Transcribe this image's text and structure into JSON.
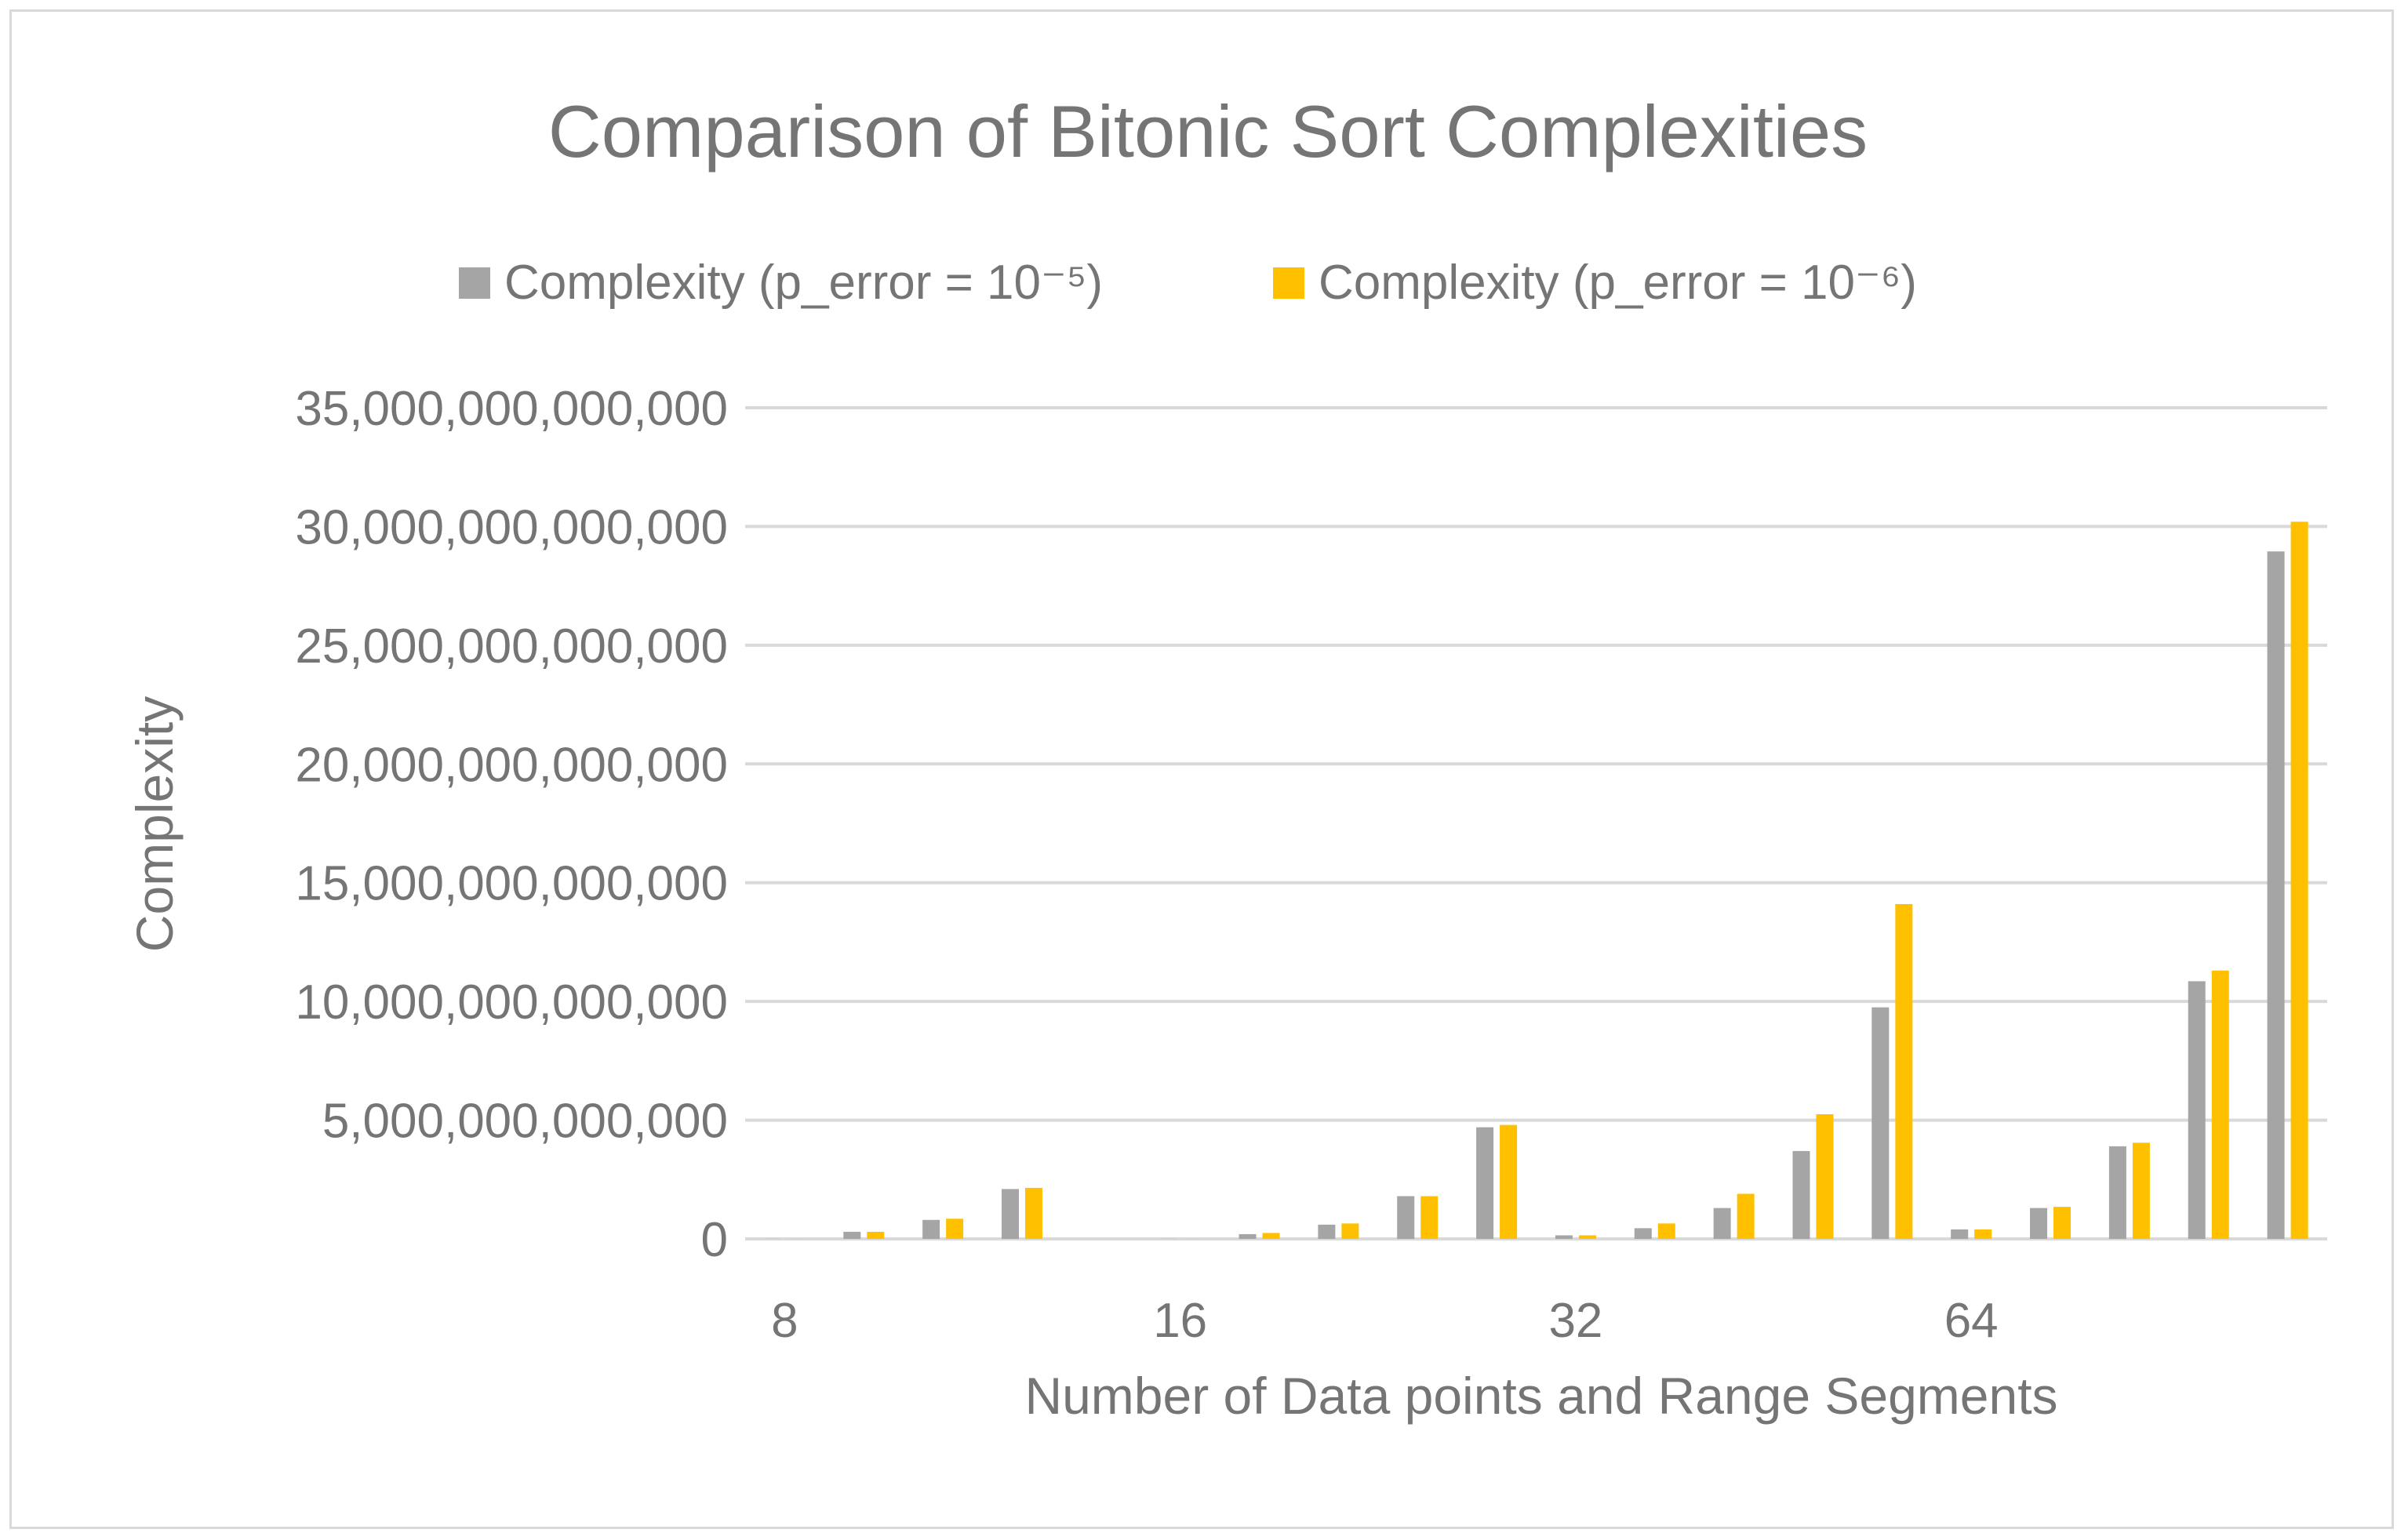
{
  "chart_data": {
    "type": "bar",
    "title": "Comparison of Bitonic Sort Complexities",
    "xlabel": "Number of Data points and Range Segments",
    "ylabel": "Complexity",
    "ylim": [
      0,
      35000000000000
    ],
    "yticks": [
      0,
      5000000000000,
      10000000000000,
      15000000000000,
      20000000000000,
      25000000000000,
      30000000000000,
      35000000000000
    ],
    "ytick_labels": [
      "0",
      "5,000,000,000,000",
      "10,000,000,000,000",
      "15,000,000,000,000",
      "20,000,000,000,000",
      "25,000,000,000,000",
      "30,000,000,000,000",
      "35,000,000,000,000"
    ],
    "categories": [
      "8",
      "",
      "",
      "",
      "",
      "16",
      "",
      "",
      "",
      "",
      "32",
      "",
      "",
      "",
      "",
      "64",
      "",
      "",
      "",
      ""
    ],
    "grid": true,
    "legend_position": "top",
    "series": [
      {
        "name": "Complexity (p_error = 10⁻⁵)",
        "color": "#a5a5a5",
        "values": [
          5000000000,
          300000000000,
          800000000000,
          2100000000000,
          0,
          5000000000,
          200000000000,
          600000000000,
          1800000000000,
          4700000000000,
          150000000000,
          450000000000,
          1300000000000,
          3700000000000,
          9750000000000,
          400000000000,
          1300000000000,
          3900000000000,
          10850000000000,
          28950000000000
        ]
      },
      {
        "name": "Complexity (p_error = 10⁻⁶)",
        "color": "#ffc000",
        "values": [
          5000000000,
          300000000000,
          850000000000,
          2150000000000,
          0,
          5000000000,
          250000000000,
          650000000000,
          1800000000000,
          4800000000000,
          150000000000,
          650000000000,
          1900000000000,
          5250000000000,
          14100000000000,
          400000000000,
          1350000000000,
          4050000000000,
          11300000000000,
          30200000000000
        ]
      }
    ]
  }
}
